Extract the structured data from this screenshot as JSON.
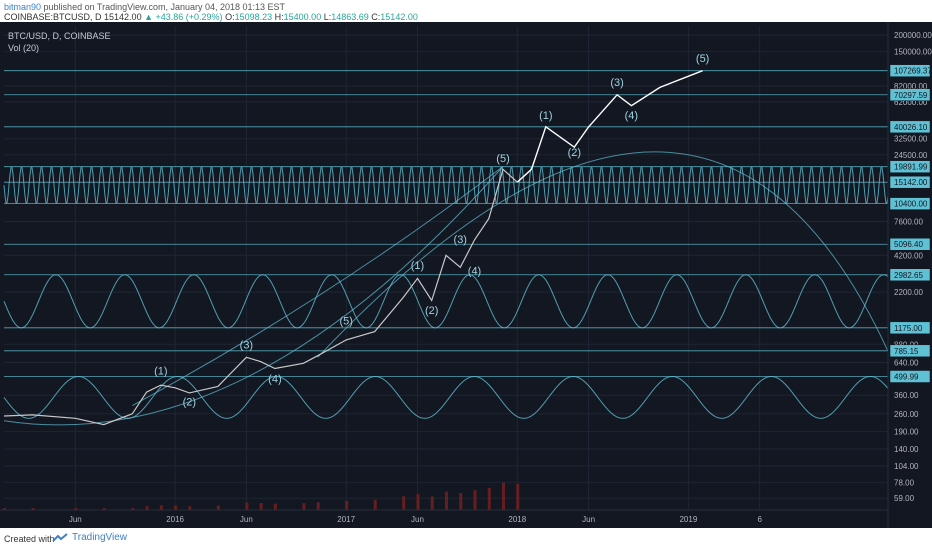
{
  "header": {
    "author": "bitman90",
    "published_text": "published on TradingView.com, January 04, 2018 01:13 EST",
    "symbol": "COINBASE:BTCUSD, D",
    "last": "15142.00",
    "change": "▲ +43.86 (+0.29%)",
    "o_label": "O:",
    "o": "15098.23",
    "h_label": "H:",
    "h": "15400.00",
    "l_label": "L:",
    "l": "14863.69",
    "c_label": "C:",
    "c": "15142.00"
  },
  "legend": {
    "series": "BTC/USD, D, COINBASE",
    "volume": "Vol (20)"
  },
  "footer": {
    "created_with": "Created with",
    "brand": "TradingView"
  },
  "colors": {
    "background": "#131722",
    "accent": "#5fc1d4",
    "price": "#c8c8c8",
    "projection": "#ffffff",
    "volume": "#7a2020"
  },
  "chart_data": {
    "type": "line",
    "y_scale": "log",
    "y_ticks": [
      "200000.00",
      "150000.00",
      "82000.00",
      "62000.00",
      "32500.00",
      "24500.00",
      "7600.00",
      "4200.00",
      "2200.00",
      "880.00",
      "640.00",
      "360.00",
      "260.00",
      "190.00",
      "140.00",
      "104.00",
      "78.00",
      "59.00"
    ],
    "y_price_labels": [
      "107269.37",
      "70297.59",
      "40026.10",
      "19891.99",
      "15142.00",
      "10400.00",
      "5096.40",
      "2982.65",
      "1175.00",
      "785.15",
      "499.99"
    ],
    "x_ticks": [
      "Jun",
      "2016",
      "Jun",
      "2017",
      "Jun",
      "2018",
      "Jun",
      "2019",
      "6"
    ],
    "price_points": [
      {
        "date": "2015-01",
        "price": 250
      },
      {
        "date": "2015-03",
        "price": 255
      },
      {
        "date": "2015-06",
        "price": 240
      },
      {
        "date": "2015-08",
        "price": 215
      },
      {
        "date": "2015-10",
        "price": 260
      },
      {
        "date": "2015-11",
        "price": 380
      },
      {
        "date": "2015-12",
        "price": 430
      },
      {
        "date": "2016-01",
        "price": 410
      },
      {
        "date": "2016-02",
        "price": 375
      },
      {
        "date": "2016-04",
        "price": 420
      },
      {
        "date": "2016-06",
        "price": 700
      },
      {
        "date": "2016-07",
        "price": 650
      },
      {
        "date": "2016-08",
        "price": 575
      },
      {
        "date": "2016-10",
        "price": 630
      },
      {
        "date": "2016-11",
        "price": 720
      },
      {
        "date": "2017-01",
        "price": 950
      },
      {
        "date": "2017-03",
        "price": 1100
      },
      {
        "date": "2017-05",
        "price": 2000
      },
      {
        "date": "2017-06",
        "price": 2800
      },
      {
        "date": "2017-07",
        "price": 1900
      },
      {
        "date": "2017-08",
        "price": 4200
      },
      {
        "date": "2017-09",
        "price": 3400
      },
      {
        "date": "2017-10",
        "price": 5500
      },
      {
        "date": "2017-11",
        "price": 8000
      },
      {
        "date": "2017-12",
        "price": 19000
      },
      {
        "date": "2018-01",
        "price": 15142
      }
    ],
    "projection_points": [
      {
        "date": "2018-01",
        "price": 15142
      },
      {
        "date": "2018-02",
        "price": 19000
      },
      {
        "date": "2018-03",
        "price": 40026
      },
      {
        "date": "2018-05",
        "price": 28000
      },
      {
        "date": "2018-06",
        "price": 40000
      },
      {
        "date": "2018-08",
        "price": 70297
      },
      {
        "date": "2018-09",
        "price": 58000
      },
      {
        "date": "2018-11",
        "price": 80000
      },
      {
        "date": "2019-02",
        "price": 107269
      }
    ],
    "wave_labels": [
      {
        "text": "(1)",
        "date": "2015-12",
        "price": 520
      },
      {
        "text": "(2)",
        "date": "2016-02",
        "price": 300
      },
      {
        "text": "(3)",
        "date": "2016-06",
        "price": 820
      },
      {
        "text": "(4)",
        "date": "2016-08",
        "price": 450
      },
      {
        "text": "(5)",
        "date": "2017-01",
        "price": 1250
      },
      {
        "text": "(1)",
        "date": "2017-06",
        "price": 3300
      },
      {
        "text": "(2)",
        "date": "2017-07",
        "price": 1500
      },
      {
        "text": "(3)",
        "date": "2017-09",
        "price": 5200
      },
      {
        "text": "(4)",
        "date": "2017-10",
        "price": 3000
      },
      {
        "text": "(5)",
        "date": "2017-12",
        "price": 21500
      },
      {
        "text": "(1)",
        "date": "2018-03",
        "price": 46000
      },
      {
        "text": "(2)",
        "date": "2018-05",
        "price": 24000
      },
      {
        "text": "(3)",
        "date": "2018-08",
        "price": 82000
      },
      {
        "text": "(4)",
        "date": "2018-09",
        "price": 46000
      },
      {
        "text": "(5)",
        "date": "2019-02",
        "price": 125000
      }
    ],
    "volume_label": "Vol (20)"
  }
}
